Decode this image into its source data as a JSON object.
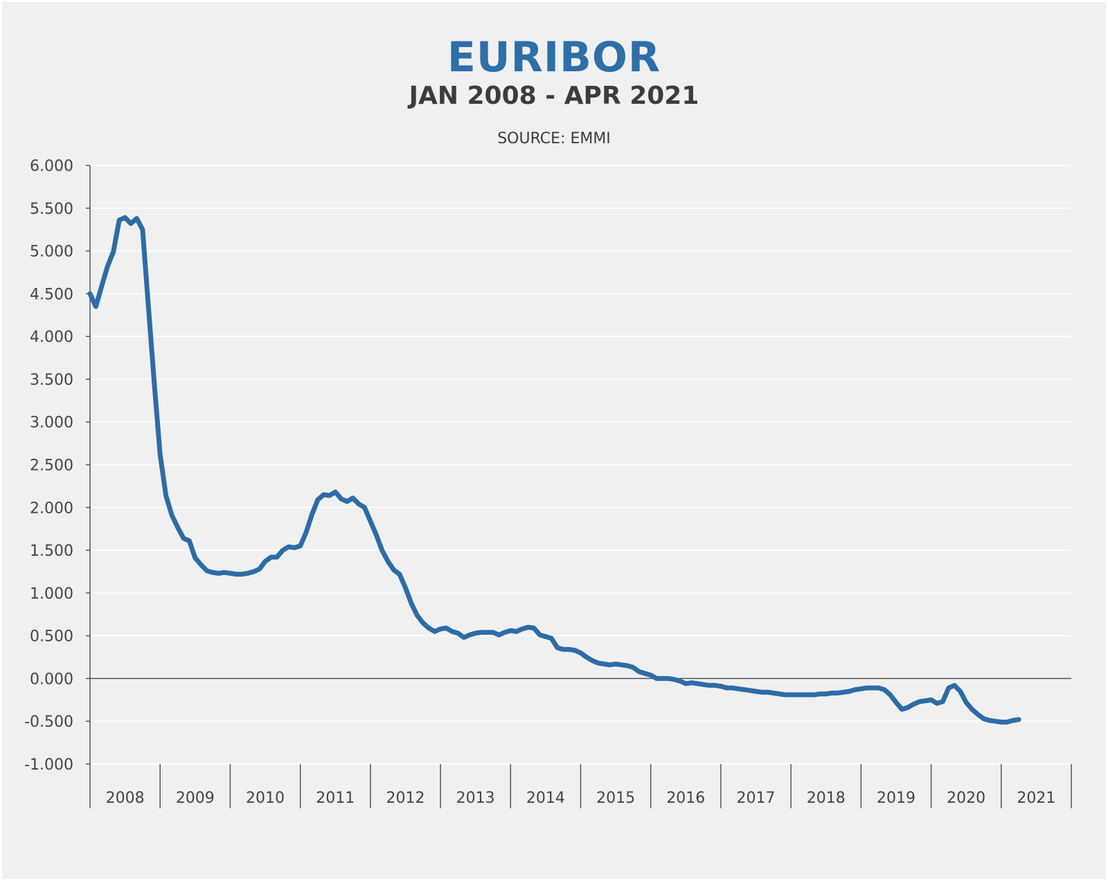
{
  "header": {
    "title": "EURIBOR",
    "subtitle": "JAN 2008 - APR 2021",
    "source": "SOURCE: EMMI"
  },
  "colors": {
    "title": "#2d6fa8",
    "line": "#2e6ca6",
    "background": "#f0f0f0"
  },
  "chart_data": {
    "type": "line",
    "title": "EURIBOR",
    "subtitle": "JAN 2008 - APR 2021",
    "ylim": [
      -1.0,
      6.0
    ],
    "y_ticks": [
      "6.000",
      "5.500",
      "5.000",
      "4.500",
      "4.000",
      "3.500",
      "3.000",
      "2.500",
      "2.000",
      "1.500",
      "1.000",
      "0.500",
      "0.000",
      "-0.500",
      "-1.000"
    ],
    "y_tick_values": [
      6.0,
      5.5,
      5.0,
      4.5,
      4.0,
      3.5,
      3.0,
      2.5,
      2.0,
      1.5,
      1.0,
      0.5,
      0.0,
      -0.5,
      -1.0
    ],
    "x_categories": [
      "2008",
      "2009",
      "2010",
      "2011",
      "2012",
      "2013",
      "2014",
      "2015",
      "2016",
      "2017",
      "2018",
      "2019",
      "2020",
      "2021"
    ],
    "x_range": [
      "2008-01",
      "2022-01"
    ],
    "grid": true,
    "series": [
      {
        "x": [
          "2008-01",
          "2008-02",
          "2008-03",
          "2008-04",
          "2008-05",
          "2008-06",
          "2008-07",
          "2008-08",
          "2008-09",
          "2008-10",
          "2008-11",
          "2008-12",
          "2009-01",
          "2009-02",
          "2009-03",
          "2009-04",
          "2009-05",
          "2009-06",
          "2009-07",
          "2009-08",
          "2009-09",
          "2009-10",
          "2009-11",
          "2009-12",
          "2010-01",
          "2010-02",
          "2010-03",
          "2010-04",
          "2010-05",
          "2010-06",
          "2010-07",
          "2010-08",
          "2010-09",
          "2010-10",
          "2010-11",
          "2010-12",
          "2011-01",
          "2011-02",
          "2011-03",
          "2011-04",
          "2011-05",
          "2011-06",
          "2011-07",
          "2011-08",
          "2011-09",
          "2011-10",
          "2011-11",
          "2011-12",
          "2012-01",
          "2012-02",
          "2012-03",
          "2012-04",
          "2012-05",
          "2012-06",
          "2012-07",
          "2012-08",
          "2012-09",
          "2012-10",
          "2012-11",
          "2012-12",
          "2013-01",
          "2013-02",
          "2013-03",
          "2013-04",
          "2013-05",
          "2013-06",
          "2013-07",
          "2013-08",
          "2013-09",
          "2013-10",
          "2013-11",
          "2013-12",
          "2014-01",
          "2014-02",
          "2014-03",
          "2014-04",
          "2014-05",
          "2014-06",
          "2014-07",
          "2014-08",
          "2014-09",
          "2014-10",
          "2014-11",
          "2014-12",
          "2015-01",
          "2015-02",
          "2015-03",
          "2015-04",
          "2015-05",
          "2015-06",
          "2015-07",
          "2015-08",
          "2015-09",
          "2015-10",
          "2015-11",
          "2015-12",
          "2016-01",
          "2016-02",
          "2016-03",
          "2016-04",
          "2016-05",
          "2016-06",
          "2016-07",
          "2016-08",
          "2016-09",
          "2016-10",
          "2016-11",
          "2016-12",
          "2017-01",
          "2017-02",
          "2017-03",
          "2017-04",
          "2017-05",
          "2017-06",
          "2017-07",
          "2017-08",
          "2017-09",
          "2017-10",
          "2017-11",
          "2017-12",
          "2018-01",
          "2018-02",
          "2018-03",
          "2018-04",
          "2018-05",
          "2018-06",
          "2018-07",
          "2018-08",
          "2018-09",
          "2018-10",
          "2018-11",
          "2018-12",
          "2019-01",
          "2019-02",
          "2019-03",
          "2019-04",
          "2019-05",
          "2019-06",
          "2019-07",
          "2019-08",
          "2019-09",
          "2019-10",
          "2019-11",
          "2019-12",
          "2020-01",
          "2020-02",
          "2020-03",
          "2020-04",
          "2020-05",
          "2020-06",
          "2020-07",
          "2020-08",
          "2020-09",
          "2020-10",
          "2020-11",
          "2020-12",
          "2021-01",
          "2021-02",
          "2021-03",
          "2021-04"
        ],
        "values": [
          4.5,
          4.35,
          4.59,
          4.82,
          4.99,
          5.36,
          5.39,
          5.32,
          5.38,
          5.25,
          4.35,
          3.45,
          2.62,
          2.14,
          1.91,
          1.77,
          1.64,
          1.61,
          1.41,
          1.33,
          1.26,
          1.24,
          1.23,
          1.24,
          1.23,
          1.22,
          1.22,
          1.23,
          1.25,
          1.28,
          1.37,
          1.42,
          1.42,
          1.5,
          1.54,
          1.53,
          1.55,
          1.71,
          1.92,
          2.09,
          2.15,
          2.14,
          2.18,
          2.1,
          2.07,
          2.11,
          2.04,
          2.0,
          1.84,
          1.68,
          1.5,
          1.37,
          1.27,
          1.22,
          1.06,
          0.88,
          0.74,
          0.65,
          0.59,
          0.55,
          0.58,
          0.59,
          0.55,
          0.53,
          0.48,
          0.51,
          0.53,
          0.54,
          0.54,
          0.54,
          0.51,
          0.54,
          0.56,
          0.55,
          0.58,
          0.6,
          0.59,
          0.51,
          0.49,
          0.47,
          0.36,
          0.34,
          0.34,
          0.33,
          0.3,
          0.25,
          0.21,
          0.18,
          0.17,
          0.16,
          0.17,
          0.16,
          0.15,
          0.13,
          0.08,
          0.06,
          0.04,
          0.0,
          0.0,
          0.0,
          -0.01,
          -0.03,
          -0.06,
          -0.05,
          -0.06,
          -0.07,
          -0.08,
          -0.08,
          -0.09,
          -0.11,
          -0.11,
          -0.12,
          -0.13,
          -0.14,
          -0.15,
          -0.16,
          -0.16,
          -0.17,
          -0.18,
          -0.19,
          -0.19,
          -0.19,
          -0.19,
          -0.19,
          -0.19,
          -0.18,
          -0.18,
          -0.17,
          -0.17,
          -0.16,
          -0.15,
          -0.13,
          -0.12,
          -0.11,
          -0.11,
          -0.11,
          -0.13,
          -0.19,
          -0.28,
          -0.36,
          -0.34,
          -0.3,
          -0.27,
          -0.26,
          -0.25,
          -0.29,
          -0.27,
          -0.11,
          -0.08,
          -0.15,
          -0.28,
          -0.36,
          -0.42,
          -0.47,
          -0.49,
          -0.5,
          -0.51,
          -0.51,
          -0.49,
          -0.48
        ]
      }
    ]
  }
}
